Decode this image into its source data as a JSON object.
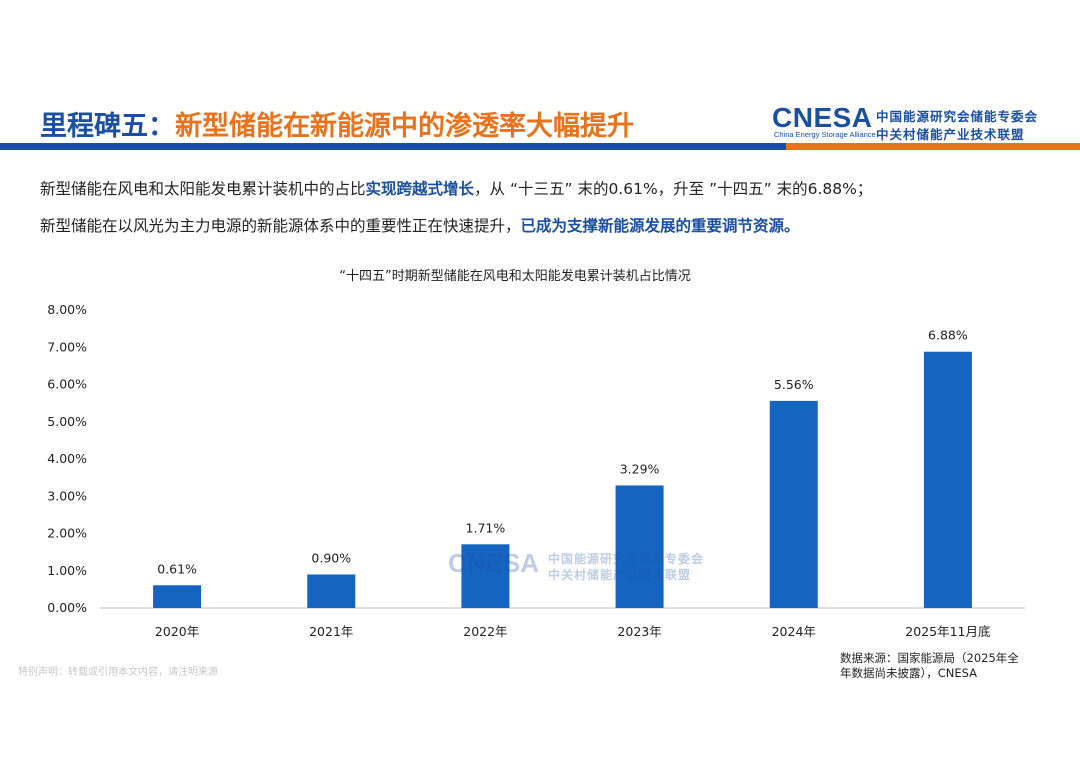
{
  "header": {
    "title_prefix": "里程碑五：",
    "title_main": "新型储能在新能源中的渗透率大幅提升",
    "logo_en": "CNESA",
    "logo_en_sub": "China Energy Storage Alliance",
    "logo_cn_line1": "中国能源研究会储能专委会",
    "logo_cn_line2": "中关村储能产业技术联盟"
  },
  "paragraph1": {
    "a": "新型储能在风电和太阳能发电累计装机中的占比",
    "b": "实现跨越式增长",
    "c": "，从 “十三五” 末的0.61%，升至 ”十四五” 末的6.88%；"
  },
  "paragraph2": {
    "a": "新型储能在以风光为主力电源的新能源体系中的重要性正在快速提升，",
    "b": "已成为支撑新能源发展的重要调节资源。"
  },
  "chart_data": {
    "type": "bar",
    "title": "“十四五”时期新型储能在风电和太阳能发电累计装机占比情况",
    "categories": [
      "2020年",
      "2021年",
      "2022年",
      "2023年",
      "2024年",
      "2025年11月底"
    ],
    "values": [
      0.61,
      0.9,
      1.71,
      3.29,
      5.56,
      6.88
    ],
    "value_labels": [
      "0.61%",
      "0.90%",
      "1.71%",
      "3.29%",
      "5.56%",
      "6.88%"
    ],
    "ylim": [
      0,
      8
    ],
    "yticks": [
      "0.00%",
      "1.00%",
      "2.00%",
      "3.00%",
      "4.00%",
      "5.00%",
      "6.00%",
      "7.00%",
      "8.00%"
    ],
    "xlabel": "",
    "ylabel": "",
    "grid": false,
    "bar_color": "#1565c0"
  },
  "watermark": {
    "en": "CNESA",
    "cn_line1": "中国能源研究会储能专委会",
    "cn_line2": "中关村储能产业技术联盟"
  },
  "source_note": "数据来源：国家能源局（2025年全年数据尚未披露），CNESA",
  "notice": "特别声明：转载或引用本文内容，请注明来源"
}
